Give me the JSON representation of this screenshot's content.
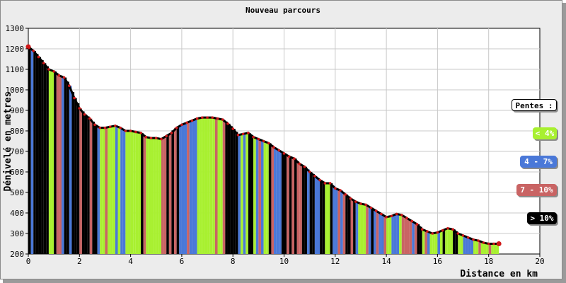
{
  "chart_data": {
    "type": "area",
    "title": "Nouveau parcours",
    "xlabel": "Distance en km",
    "ylabel": "Dénivelé en metres",
    "xlim": [
      0,
      20
    ],
    "ylim": [
      200,
      1300
    ],
    "x_ticks": [
      0,
      2,
      4,
      6,
      8,
      10,
      12,
      14,
      16,
      18,
      20
    ],
    "y_ticks": [
      200,
      300,
      400,
      500,
      600,
      700,
      800,
      900,
      1000,
      1100,
      1200,
      1300
    ],
    "grid": true,
    "series": [
      {
        "x": [
          0,
          0.2,
          0.4,
          0.6,
          0.8,
          1.0,
          1.2,
          1.4,
          1.6,
          1.8,
          2.0,
          2.2,
          2.4,
          2.6,
          2.8,
          3.0,
          3.2,
          3.4,
          3.6,
          3.8,
          4.0,
          4.2,
          4.4,
          4.6,
          4.8,
          5.0,
          5.2,
          5.4,
          5.6,
          5.8,
          6.0,
          6.2,
          6.4,
          6.6,
          6.8,
          7.0,
          7.2,
          7.4,
          7.6,
          7.8,
          8.0,
          8.2,
          8.4,
          8.6,
          8.8,
          9.0,
          9.2,
          9.4,
          9.6,
          9.8,
          10.0,
          10.2,
          10.4,
          10.6,
          10.8,
          11.0,
          11.2,
          11.4,
          11.6,
          11.8,
          12.0,
          12.2,
          12.4,
          12.6,
          12.8,
          13.0,
          13.2,
          13.4,
          13.6,
          13.8,
          14.0,
          14.2,
          14.4,
          14.6,
          14.8,
          15.0,
          15.2,
          15.4,
          15.6,
          15.8,
          16.0,
          16.2,
          16.4,
          16.6,
          16.8,
          17.0,
          17.2,
          17.4,
          17.6,
          17.8,
          18.0,
          18.2,
          18.4
        ],
        "y": [
          1210,
          1190,
          1160,
          1130,
          1100,
          1090,
          1070,
          1060,
          1020,
          960,
          910,
          880,
          860,
          830,
          815,
          815,
          820,
          825,
          815,
          800,
          800,
          795,
          790,
          770,
          765,
          765,
          760,
          775,
          790,
          815,
          830,
          840,
          850,
          860,
          865,
          865,
          865,
          860,
          855,
          835,
          810,
          780,
          785,
          790,
          770,
          760,
          750,
          740,
          720,
          705,
          690,
          675,
          665,
          640,
          625,
          600,
          580,
          560,
          545,
          545,
          520,
          510,
          490,
          470,
          455,
          445,
          440,
          425,
          410,
          395,
          380,
          385,
          395,
          390,
          375,
          360,
          345,
          320,
          310,
          300,
          305,
          315,
          325,
          320,
          300,
          290,
          280,
          270,
          265,
          255,
          250,
          250,
          250
        ]
      }
    ],
    "legend": {
      "title": "Pentes :",
      "placement": "right",
      "items": [
        {
          "label": "< 4%",
          "color": "#a8f030",
          "text_color": "#ffffff"
        },
        {
          "label": "4 - 7%",
          "color": "#4a78d8",
          "text_color": "#ffffff"
        },
        {
          "label": "7 - 10%",
          "color": "#c96464",
          "text_color": "#ffffff"
        },
        {
          "label": "> 10%",
          "color": "#000000",
          "text_color": "#ffffff"
        }
      ]
    },
    "line_color": "#000000",
    "marker_color": "#d01818"
  }
}
